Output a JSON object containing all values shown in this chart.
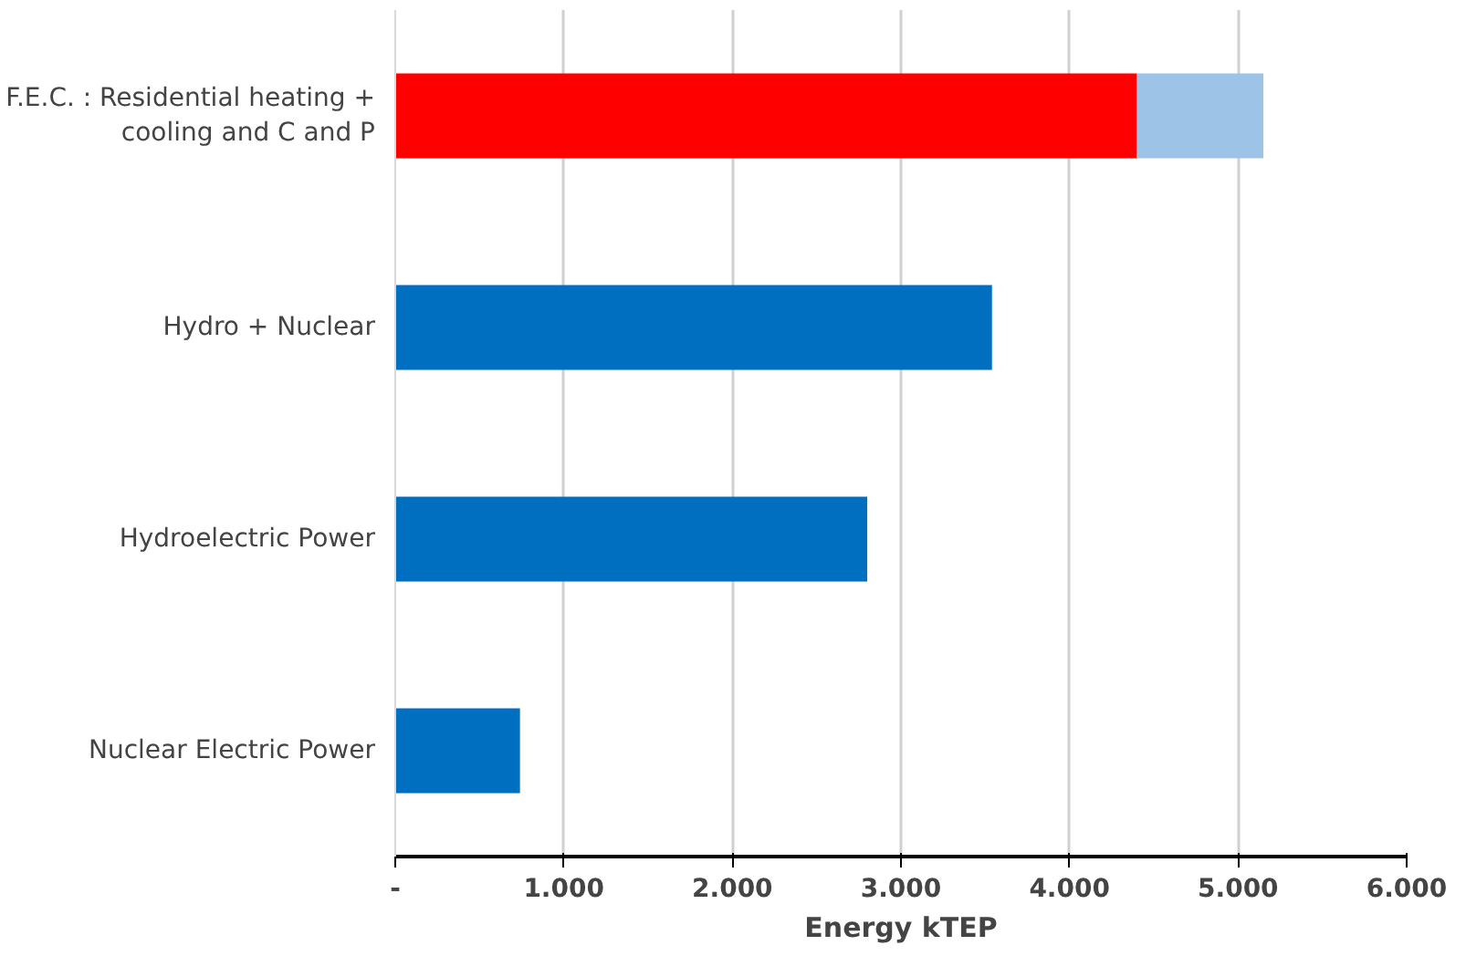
{
  "chart_data": {
    "type": "bar",
    "orientation": "horizontal",
    "stacked": true,
    "xlabel": "Energy kTEP",
    "categories": [
      "F.E.C. : Residential heating + cooling and C and P",
      "Hydro + Nuclear",
      "Hydroelectric Power",
      "Nuclear Electric Power"
    ],
    "series": [
      {
        "colors": [
          "#ff0000",
          "#006fc0",
          "#006fc0",
          "#006fc0"
        ],
        "values": [
          4400,
          3540,
          2800,
          740
        ]
      },
      {
        "color": "#9dc3e6",
        "values": [
          750,
          null,
          null,
          null
        ]
      }
    ],
    "xlim": [
      0,
      6000
    ],
    "xticks": [
      {
        "value": 0,
        "label": "-"
      },
      {
        "value": 1000,
        "label": "1.000"
      },
      {
        "value": 2000,
        "label": "2.000"
      },
      {
        "value": 3000,
        "label": "3.000"
      },
      {
        "value": 4000,
        "label": "4.000"
      },
      {
        "value": 5000,
        "label": "5.000"
      },
      {
        "value": 6000,
        "label": "6.000"
      }
    ],
    "grid": "x"
  }
}
